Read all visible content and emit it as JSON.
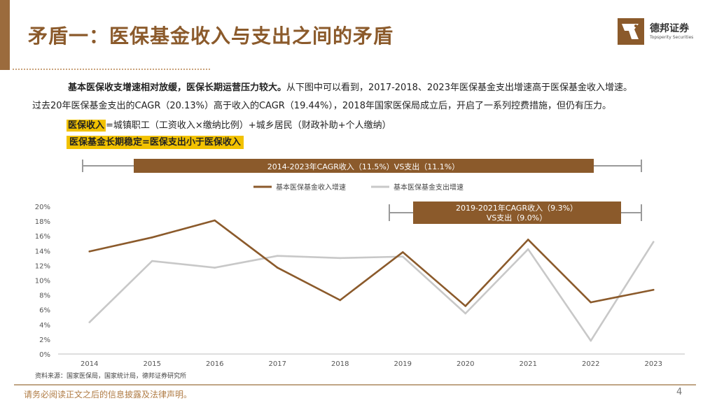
{
  "header": {
    "title": "矛盾一：医保基金收入与支出之间的矛盾",
    "logo_name": "德邦证券",
    "logo_sub": "Topsperity Securities"
  },
  "body": {
    "para1_bold": "基本医保收支增速相对放缓，医保长期运营压力较大。",
    "para1_rest": "从下图中可以看到，2017-2018、2023年医保基金支出增速高于医保基金收入增速。",
    "para2": "过去20年医保基金支出的CAGR（20.13%）高于收入的CAGR（19.44%），2018年国家医保局成立后，开启了一系列控费措施，但仍有压力。",
    "highlight1_mark": "医保收入",
    "highlight1_rest": "=城镇职工（工资收入×缴纳比例）+城乡居民（财政补助+个人缴纳）",
    "highlight2": "医保基金长期稳定=医保支出小于医保收入"
  },
  "annotations": {
    "top_banner": "2014-2023年CAGR收入（11.5%）VS支出（11.1%）",
    "inner_banner_line1": "2019-2021年CAGR收入（9.3%）",
    "inner_banner_line2": "VS支出（9.0%）"
  },
  "chart_data": {
    "type": "line",
    "x": [
      "2014",
      "2015",
      "2016",
      "2017",
      "2018",
      "2019",
      "2020",
      "2021",
      "2022",
      "2023"
    ],
    "yticks": [
      "0%",
      "2%",
      "4%",
      "6%",
      "8%",
      "10%",
      "12%",
      "14%",
      "16%",
      "18%",
      "20%"
    ],
    "ylim": [
      0,
      20
    ],
    "grid": false,
    "legend_position": "top",
    "series": [
      {
        "name": "基本医保基金收入增速",
        "color": "#8b5a2b",
        "values": [
          13.9,
          15.8,
          18.1,
          11.7,
          7.3,
          13.8,
          6.5,
          15.5,
          7.0,
          8.7
        ]
      },
      {
        "name": "基本医保基金支出增速",
        "color": "#c8c8c8",
        "values": [
          4.3,
          12.6,
          11.7,
          13.3,
          13.0,
          13.2,
          5.5,
          14.2,
          1.8,
          15.2
        ]
      }
    ]
  },
  "source": "资料来源：国家医保局，国家统计局，德邦证券研究所",
  "footer": {
    "disclaimer": "请务必阅读正文之后的信息披露及法律声明。",
    "page": "4"
  },
  "colors": {
    "brand": "#8b5a2b",
    "highlight": "#f2c200",
    "expense_line": "#c8c8c8"
  }
}
